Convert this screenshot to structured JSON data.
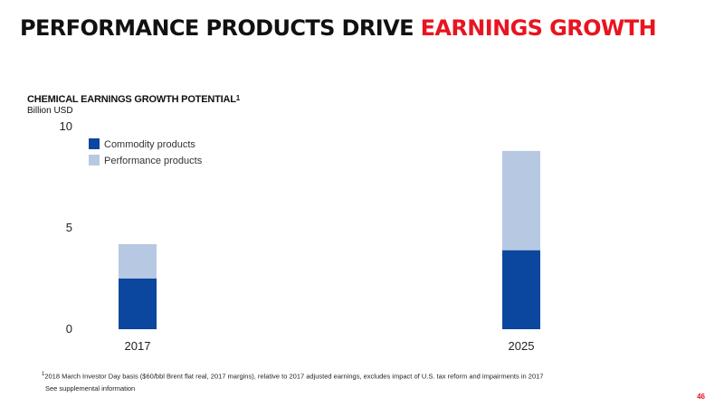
{
  "slide": {
    "title_main": "PERFORMANCE PRODUCTS DRIVE ",
    "title_highlight": "EARNINGS GROWTH",
    "page_number": "46",
    "footnote": "2018 March Investor Day basis ($60/bbl Brent flat real, 2017 margins), relative to 2017 adjusted earnings, excludes impact of U.S. tax reform and impairments in 2017",
    "footnote_marker": "1",
    "supplemental": "See supplemental information"
  },
  "chart_data": {
    "type": "bar",
    "stacked": true,
    "title": "CHEMICAL EARNINGS GROWTH POTENTIAL",
    "title_superscript": "1",
    "subtitle": "Billion USD",
    "categories": [
      "2017",
      "2025"
    ],
    "series": [
      {
        "name": "Commodity products",
        "values": [
          2.5,
          3.9
        ],
        "color": "#0b479e"
      },
      {
        "name": "Performance products",
        "values": [
          1.7,
          4.9
        ],
        "color": "#b7c8e3"
      }
    ],
    "ylim": [
      0,
      10
    ],
    "yticks": [
      0,
      5,
      10
    ],
    "grid": false,
    "legend_position": "top-left"
  }
}
